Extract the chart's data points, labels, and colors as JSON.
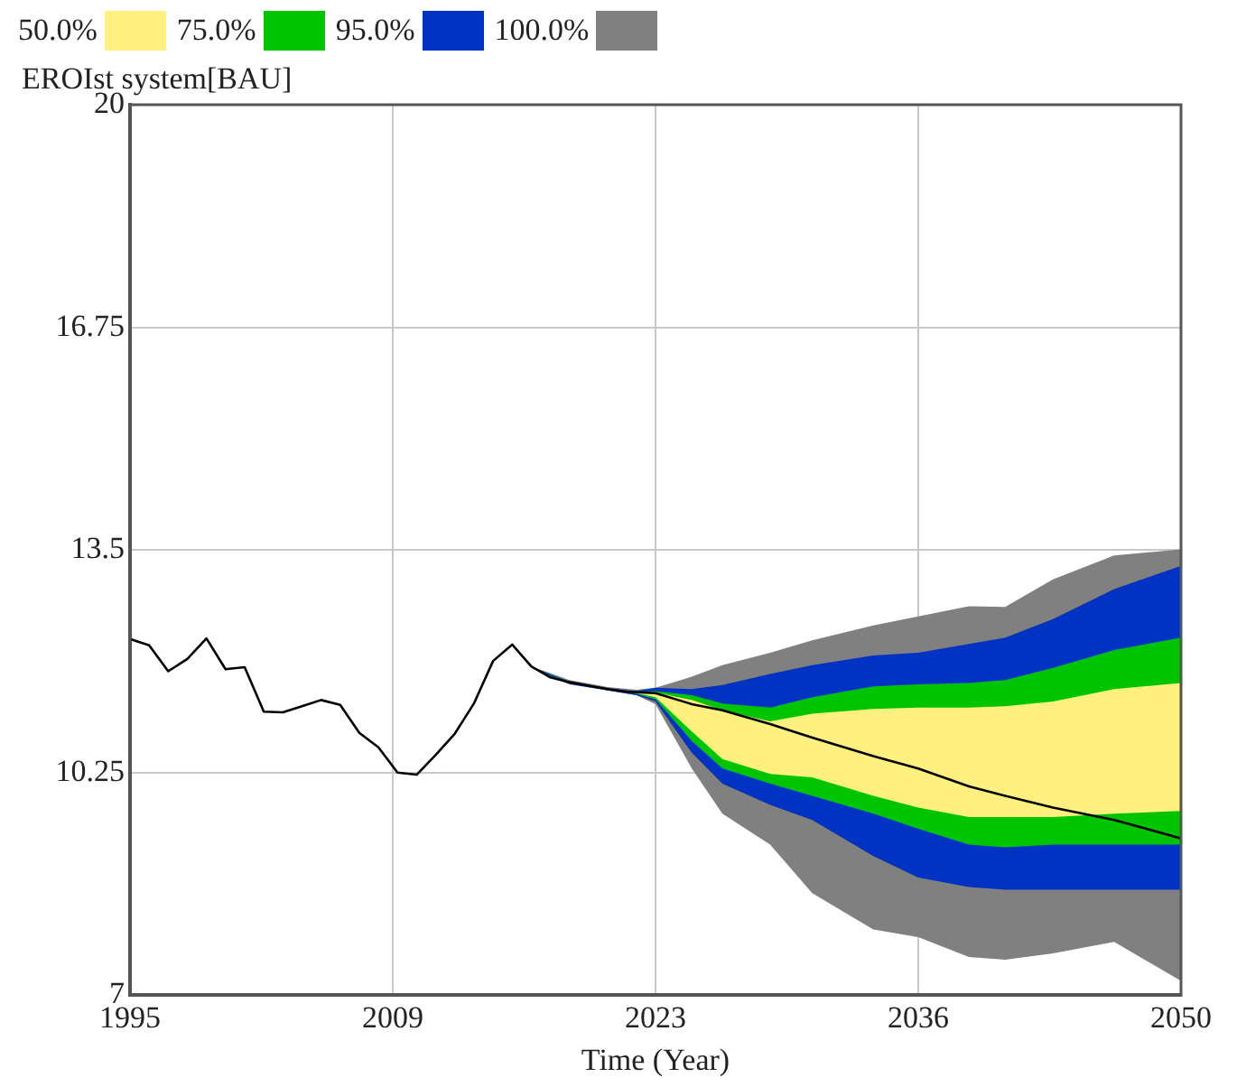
{
  "chart_data": {
    "type": "line",
    "title": "EROIst system[BAU]",
    "xlabel": "Time (Year)",
    "xlim": [
      1995,
      2050
    ],
    "xticks": [
      1995,
      {
        "value": 2008.75,
        "label": "2009"
      },
      {
        "value": 2022.5,
        "label": "2023"
      },
      {
        "value": 2036.25,
        "label": "2036"
      },
      2050
    ],
    "ylim": [
      7,
      20
    ],
    "yticks": [
      7,
      10.25,
      13.5,
      16.75,
      20
    ],
    "grid": true,
    "legend": "top left",
    "marker": "none",
    "line_style": "solid",
    "series": [
      {
        "name": "100.0%",
        "color": "#808080",
        "x": [
          2016,
          2018,
          2020,
          2021.5,
          2022.5,
          2024.4,
          2026.0,
          2028.5,
          2030.7,
          2033.9,
          2036.25,
          2038.9,
          2040.8,
          2043.3,
          2046.5,
          2050
        ],
        "values": [
          null,
          null,
          null,
          null,
          null,
          null,
          null,
          null,
          null,
          null,
          null,
          null,
          null,
          null,
          null,
          null
        ],
        "lower": [
          11.8,
          11.55,
          11.45,
          11.38,
          11.25,
          10.31,
          9.65,
          9.2,
          8.49,
          7.96,
          7.85,
          7.56,
          7.52,
          7.61,
          7.78,
          7.21
        ],
        "upper": [
          11.8,
          11.6,
          11.5,
          11.46,
          11.49,
          11.65,
          11.82,
          12.0,
          12.18,
          12.4,
          12.53,
          12.68,
          12.67,
          13.07,
          13.42,
          13.51
        ]
      },
      {
        "name": "95.0%",
        "color": "#0033c4",
        "x": [
          2016,
          2018,
          2020,
          2021.5,
          2022.5,
          2024.4,
          2026.0,
          2028.5,
          2030.7,
          2033.9,
          2036.25,
          2038.9,
          2040.8,
          2043.3,
          2046.5,
          2050
        ],
        "values": [
          null,
          null,
          null,
          null,
          null,
          null,
          null,
          null,
          null,
          null,
          null,
          null,
          null,
          null,
          null,
          null
        ],
        "lower": [
          11.78,
          11.54,
          11.45,
          11.38,
          11.29,
          10.54,
          10.09,
          9.78,
          9.56,
          9.03,
          8.72,
          8.58,
          8.54,
          8.54,
          8.54,
          8.54
        ],
        "upper": [
          11.8,
          11.58,
          11.48,
          11.44,
          11.49,
          11.47,
          11.53,
          11.69,
          11.82,
          11.96,
          12.0,
          12.13,
          12.22,
          12.49,
          12.93,
          13.27
        ]
      },
      {
        "name": "75.0%",
        "color": "#00c400",
        "x": [
          2016,
          2018,
          2020,
          2021.5,
          2022.5,
          2024.4,
          2026.0,
          2028.5,
          2030.7,
          2033.9,
          2036.25,
          2038.9,
          2040.8,
          2043.3,
          2046.5,
          2050
        ],
        "values": [
          null,
          null,
          null,
          null,
          null,
          null,
          null,
          null,
          null,
          null,
          null,
          null,
          null,
          null,
          null,
          null
        ],
        "lower": [
          11.8,
          11.56,
          11.46,
          11.4,
          11.32,
          10.71,
          10.31,
          10.09,
          9.91,
          9.65,
          9.43,
          9.2,
          9.16,
          9.2,
          9.2,
          9.2
        ],
        "upper": [
          11.8,
          11.57,
          11.47,
          11.43,
          11.44,
          11.38,
          11.26,
          11.2,
          11.35,
          11.51,
          11.54,
          11.56,
          11.6,
          11.78,
          12.04,
          12.22
        ]
      },
      {
        "name": "50.0%",
        "color": "#fff080",
        "x": [
          2016,
          2018,
          2020,
          2021.5,
          2022.5,
          2024.4,
          2026.0,
          2028.5,
          2030.7,
          2033.9,
          2036.25,
          2038.9,
          2040.8,
          2043.3,
          2046.5,
          2050
        ],
        "values": [
          null,
          null,
          null,
          null,
          null,
          null,
          null,
          null,
          null,
          null,
          null,
          null,
          null,
          null,
          null,
          null
        ],
        "lower": [
          11.8,
          11.57,
          11.47,
          11.41,
          11.35,
          10.85,
          10.45,
          10.23,
          10.18,
          9.91,
          9.74,
          9.6,
          9.6,
          9.6,
          9.65,
          9.69
        ],
        "upper": [
          11.8,
          11.57,
          11.47,
          11.42,
          11.42,
          11.31,
          11.16,
          11.0,
          11.11,
          11.18,
          11.2,
          11.2,
          11.22,
          11.29,
          11.47,
          11.56
        ]
      },
      {
        "color": "#000000",
        "x": [
          1995,
          1996,
          1997,
          1998,
          1999,
          2000,
          2001,
          2002,
          2003,
          2004,
          2005,
          2006,
          2007,
          2008,
          2009,
          2010,
          2011,
          2012,
          2013,
          2014,
          2015,
          2016,
          2017,
          2018,
          2019,
          2020,
          2021,
          2022.5,
          2024.4,
          2026.0,
          2028.5,
          2030.7,
          2033.9,
          2036.25,
          2038.9,
          2040.8,
          2043.3,
          2046.5,
          2050
        ],
        "values": [
          12.2,
          12.11,
          11.73,
          11.91,
          12.21,
          11.76,
          11.79,
          11.14,
          11.13,
          11.22,
          11.31,
          11.24,
          10.83,
          10.62,
          10.25,
          10.22,
          10.51,
          10.82,
          11.26,
          11.88,
          12.12,
          11.8,
          11.64,
          11.57,
          11.52,
          11.47,
          11.43,
          11.41,
          11.25,
          11.16,
          10.96,
          10.76,
          10.49,
          10.31,
          10.05,
          9.91,
          9.74,
          9.56,
          9.29
        ]
      }
    ]
  }
}
